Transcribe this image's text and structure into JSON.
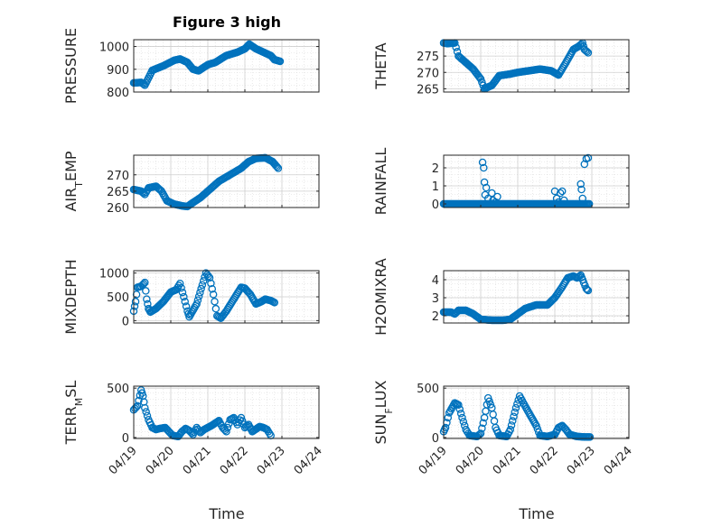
{
  "figure": {
    "title": "Figure 3 high",
    "marker_color": "#0072BD",
    "time_ticks": [
      "04/19",
      "04/20",
      "04/21",
      "04/22",
      "04/23",
      "04/24"
    ],
    "xlabel": "Time"
  },
  "chart_data": [
    {
      "type": "scatter",
      "id": "pressure",
      "ylabel": "PRESSURE",
      "ylim": [
        800,
        1030
      ],
      "yticks": [
        800,
        900,
        1000
      ],
      "ytick_labels": [
        "800",
        "900",
        "1000"
      ],
      "xlim": [
        0,
        5
      ],
      "show_xticks": false,
      "grid": true,
      "keypoints": [
        [
          0,
          840
        ],
        [
          0.2,
          842
        ],
        [
          0.3,
          830
        ],
        [
          0.5,
          895
        ],
        [
          0.8,
          915
        ],
        [
          1.1,
          940
        ],
        [
          1.25,
          945
        ],
        [
          1.45,
          930
        ],
        [
          1.6,
          900
        ],
        [
          1.75,
          893
        ],
        [
          2.0,
          920
        ],
        [
          2.2,
          930
        ],
        [
          2.5,
          960
        ],
        [
          2.8,
          975
        ],
        [
          3.0,
          990
        ],
        [
          3.12,
          1010
        ],
        [
          3.3,
          990
        ],
        [
          3.5,
          975
        ],
        [
          3.7,
          960
        ],
        [
          3.8,
          942
        ],
        [
          3.95,
          935
        ]
      ]
    },
    {
      "type": "scatter",
      "id": "theta",
      "ylabel": "THETA",
      "ylim": [
        264,
        280
      ],
      "yticks": [
        265,
        270,
        275
      ],
      "ytick_labels": [
        "265",
        "270",
        "275"
      ],
      "xlim": [
        0,
        5
      ],
      "show_xticks": false,
      "grid": true,
      "keypoints": [
        [
          0,
          279
        ],
        [
          0.1,
          278.8
        ],
        [
          0.3,
          279
        ],
        [
          0.4,
          275
        ],
        [
          0.6,
          273
        ],
        [
          0.8,
          271
        ],
        [
          1.0,
          268
        ],
        [
          1.1,
          265
        ],
        [
          1.3,
          266
        ],
        [
          1.5,
          269
        ],
        [
          1.8,
          269.5
        ],
        [
          2.0,
          270
        ],
        [
          2.3,
          270.5
        ],
        [
          2.6,
          271
        ],
        [
          2.9,
          270.5
        ],
        [
          3.1,
          269.2
        ],
        [
          3.3,
          273
        ],
        [
          3.5,
          277
        ],
        [
          3.65,
          278
        ],
        [
          3.75,
          279
        ],
        [
          3.8,
          277
        ],
        [
          3.9,
          276
        ]
      ]
    },
    {
      "type": "scatter",
      "id": "air_temp",
      "ylabel": "AIR_TEMP",
      "ylim": [
        260,
        276
      ],
      "yticks": [
        260,
        265,
        270
      ],
      "ytick_labels": [
        "260",
        "265",
        "270"
      ],
      "xlim": [
        0,
        5
      ],
      "show_xticks": false,
      "grid": true,
      "keypoints": [
        [
          0,
          265.5
        ],
        [
          0.2,
          265
        ],
        [
          0.3,
          264
        ],
        [
          0.4,
          266
        ],
        [
          0.6,
          266.5
        ],
        [
          0.75,
          265
        ],
        [
          0.9,
          262
        ],
        [
          1.1,
          261
        ],
        [
          1.3,
          260.5
        ],
        [
          1.45,
          260.3
        ],
        [
          1.6,
          261.5
        ],
        [
          1.8,
          263
        ],
        [
          2.0,
          265
        ],
        [
          2.3,
          268
        ],
        [
          2.6,
          270
        ],
        [
          2.9,
          272
        ],
        [
          3.1,
          274
        ],
        [
          3.3,
          275
        ],
        [
          3.55,
          275.2
        ],
        [
          3.75,
          274
        ],
        [
          3.9,
          272
        ]
      ]
    },
    {
      "type": "scatter",
      "id": "rainfall",
      "ylabel": "RAINFALL",
      "ylim": [
        -0.2,
        2.7
      ],
      "yticks": [
        0,
        1,
        2
      ],
      "ytick_labels": [
        "0",
        "1",
        "2"
      ],
      "xlim": [
        0,
        5
      ],
      "show_xticks": false,
      "grid": true,
      "baseline": {
        "x_start": 0,
        "x_end": 3.95,
        "y": 0
      },
      "extra_points": [
        [
          1.05,
          2.3
        ],
        [
          1.08,
          2.0
        ],
        [
          1.1,
          1.2
        ],
        [
          1.12,
          0.5
        ],
        [
          1.15,
          0.9
        ],
        [
          1.2,
          0.3
        ],
        [
          1.3,
          0.6
        ],
        [
          1.33,
          0.2
        ],
        [
          1.4,
          0.1
        ],
        [
          1.45,
          0.4
        ],
        [
          3.0,
          0.7
        ],
        [
          3.05,
          0.3
        ],
        [
          3.1,
          0.1
        ],
        [
          3.15,
          0.6
        ],
        [
          3.2,
          0.7
        ],
        [
          3.25,
          0.2
        ],
        [
          3.7,
          1.1
        ],
        [
          3.72,
          0.8
        ],
        [
          3.75,
          0.3
        ],
        [
          3.8,
          2.2
        ],
        [
          3.85,
          2.5
        ],
        [
          3.9,
          2.55
        ]
      ]
    },
    {
      "type": "scatter",
      "id": "mixdepth",
      "ylabel": "MIXDEPTH",
      "ylim": [
        -50,
        1050
      ],
      "yticks": [
        0,
        500,
        1000
      ],
      "ytick_labels": [
        "0",
        "500",
        "1000"
      ],
      "xlim": [
        0,
        5
      ],
      "show_xticks": false,
      "grid": true,
      "keypoints": [
        [
          0,
          200
        ],
        [
          0.05,
          400
        ],
        [
          0.1,
          700
        ],
        [
          0.2,
          720
        ],
        [
          0.3,
          800
        ],
        [
          0.35,
          450
        ],
        [
          0.4,
          250
        ],
        [
          0.45,
          180
        ],
        [
          0.6,
          250
        ],
        [
          0.8,
          400
        ],
        [
          1.0,
          600
        ],
        [
          1.15,
          650
        ],
        [
          1.25,
          780
        ],
        [
          1.35,
          500
        ],
        [
          1.45,
          200
        ],
        [
          1.5,
          80
        ],
        [
          1.55,
          150
        ],
        [
          1.7,
          350
        ],
        [
          1.85,
          750
        ],
        [
          1.95,
          1000
        ],
        [
          2.05,
          900
        ],
        [
          2.15,
          550
        ],
        [
          2.25,
          100
        ],
        [
          2.35,
          50
        ],
        [
          2.5,
          200
        ],
        [
          2.7,
          450
        ],
        [
          2.9,
          700
        ],
        [
          3.0,
          680
        ],
        [
          3.15,
          550
        ],
        [
          3.3,
          350
        ],
        [
          3.45,
          400
        ],
        [
          3.55,
          450
        ],
        [
          3.7,
          420
        ],
        [
          3.8,
          380
        ]
      ]
    },
    {
      "type": "scatter",
      "id": "h2omixra",
      "ylabel": "H2OMIXRA",
      "ylim": [
        1.6,
        4.5
      ],
      "yticks": [
        2,
        3,
        4
      ],
      "ytick_labels": [
        "2",
        "3",
        "4"
      ],
      "xlim": [
        0,
        5
      ],
      "show_xticks": false,
      "grid": true,
      "keypoints": [
        [
          0,
          2.2
        ],
        [
          0.2,
          2.2
        ],
        [
          0.3,
          2.1
        ],
        [
          0.4,
          2.3
        ],
        [
          0.6,
          2.3
        ],
        [
          0.8,
          2.1
        ],
        [
          1.0,
          1.8
        ],
        [
          1.3,
          1.75
        ],
        [
          1.6,
          1.75
        ],
        [
          1.8,
          1.8
        ],
        [
          2.0,
          2.1
        ],
        [
          2.2,
          2.4
        ],
        [
          2.5,
          2.6
        ],
        [
          2.8,
          2.6
        ],
        [
          3.0,
          3.0
        ],
        [
          3.2,
          3.6
        ],
        [
          3.35,
          4.1
        ],
        [
          3.5,
          4.2
        ],
        [
          3.6,
          4.1
        ],
        [
          3.7,
          4.25
        ],
        [
          3.75,
          4.0
        ],
        [
          3.85,
          3.5
        ],
        [
          3.9,
          3.4
        ]
      ]
    },
    {
      "type": "scatter",
      "id": "terr_msl",
      "ylabel": "TERR_MSL",
      "ylim": [
        -10,
        520
      ],
      "yticks": [
        0,
        500
      ],
      "ytick_labels": [
        "0",
        "500"
      ],
      "xlim": [
        0,
        5
      ],
      "show_xticks": true,
      "xtick_labels_bound": true,
      "grid": true,
      "keypoints": [
        [
          0,
          280
        ],
        [
          0.1,
          320
        ],
        [
          0.2,
          480
        ],
        [
          0.25,
          420
        ],
        [
          0.3,
          300
        ],
        [
          0.4,
          180
        ],
        [
          0.5,
          100
        ],
        [
          0.6,
          80
        ],
        [
          0.7,
          90
        ],
        [
          0.85,
          100
        ],
        [
          0.95,
          60
        ],
        [
          1.05,
          20
        ],
        [
          1.2,
          10
        ],
        [
          1.3,
          60
        ],
        [
          1.4,
          90
        ],
        [
          1.5,
          70
        ],
        [
          1.6,
          30
        ],
        [
          1.7,
          100
        ],
        [
          1.8,
          50
        ],
        [
          1.9,
          80
        ],
        [
          2.1,
          120
        ],
        [
          2.3,
          170
        ],
        [
          2.4,
          100
        ],
        [
          2.5,
          60
        ],
        [
          2.6,
          180
        ],
        [
          2.7,
          200
        ],
        [
          2.8,
          130
        ],
        [
          2.9,
          200
        ],
        [
          3.0,
          100
        ],
        [
          3.1,
          130
        ],
        [
          3.2,
          60
        ],
        [
          3.4,
          110
        ],
        [
          3.5,
          100
        ],
        [
          3.6,
          80
        ],
        [
          3.7,
          20
        ]
      ]
    },
    {
      "type": "scatter",
      "id": "sun_flux",
      "ylabel": "SUN_FLUX",
      "ylim": [
        -10,
        520
      ],
      "yticks": [
        0,
        500
      ],
      "ytick_labels": [
        "0",
        "500"
      ],
      "xlim": [
        0,
        5
      ],
      "show_xticks": true,
      "xtick_labels_bound": true,
      "grid": true,
      "keypoints": [
        [
          0,
          60
        ],
        [
          0.05,
          100
        ],
        [
          0.15,
          250
        ],
        [
          0.3,
          350
        ],
        [
          0.4,
          330
        ],
        [
          0.5,
          200
        ],
        [
          0.6,
          80
        ],
        [
          0.7,
          20
        ],
        [
          0.9,
          10
        ],
        [
          1.0,
          40
        ],
        [
          1.1,
          200
        ],
        [
          1.2,
          400
        ],
        [
          1.3,
          300
        ],
        [
          1.4,
          100
        ],
        [
          1.5,
          20
        ],
        [
          1.7,
          10
        ],
        [
          1.8,
          80
        ],
        [
          1.95,
          300
        ],
        [
          2.05,
          420
        ],
        [
          2.15,
          350
        ],
        [
          2.3,
          250
        ],
        [
          2.5,
          120
        ],
        [
          2.6,
          20
        ],
        [
          2.8,
          10
        ],
        [
          3.0,
          30
        ],
        [
          3.1,
          100
        ],
        [
          3.2,
          120
        ],
        [
          3.3,
          80
        ],
        [
          3.4,
          30
        ],
        [
          3.6,
          10
        ],
        [
          3.8,
          5
        ],
        [
          3.95,
          5
        ]
      ]
    }
  ]
}
